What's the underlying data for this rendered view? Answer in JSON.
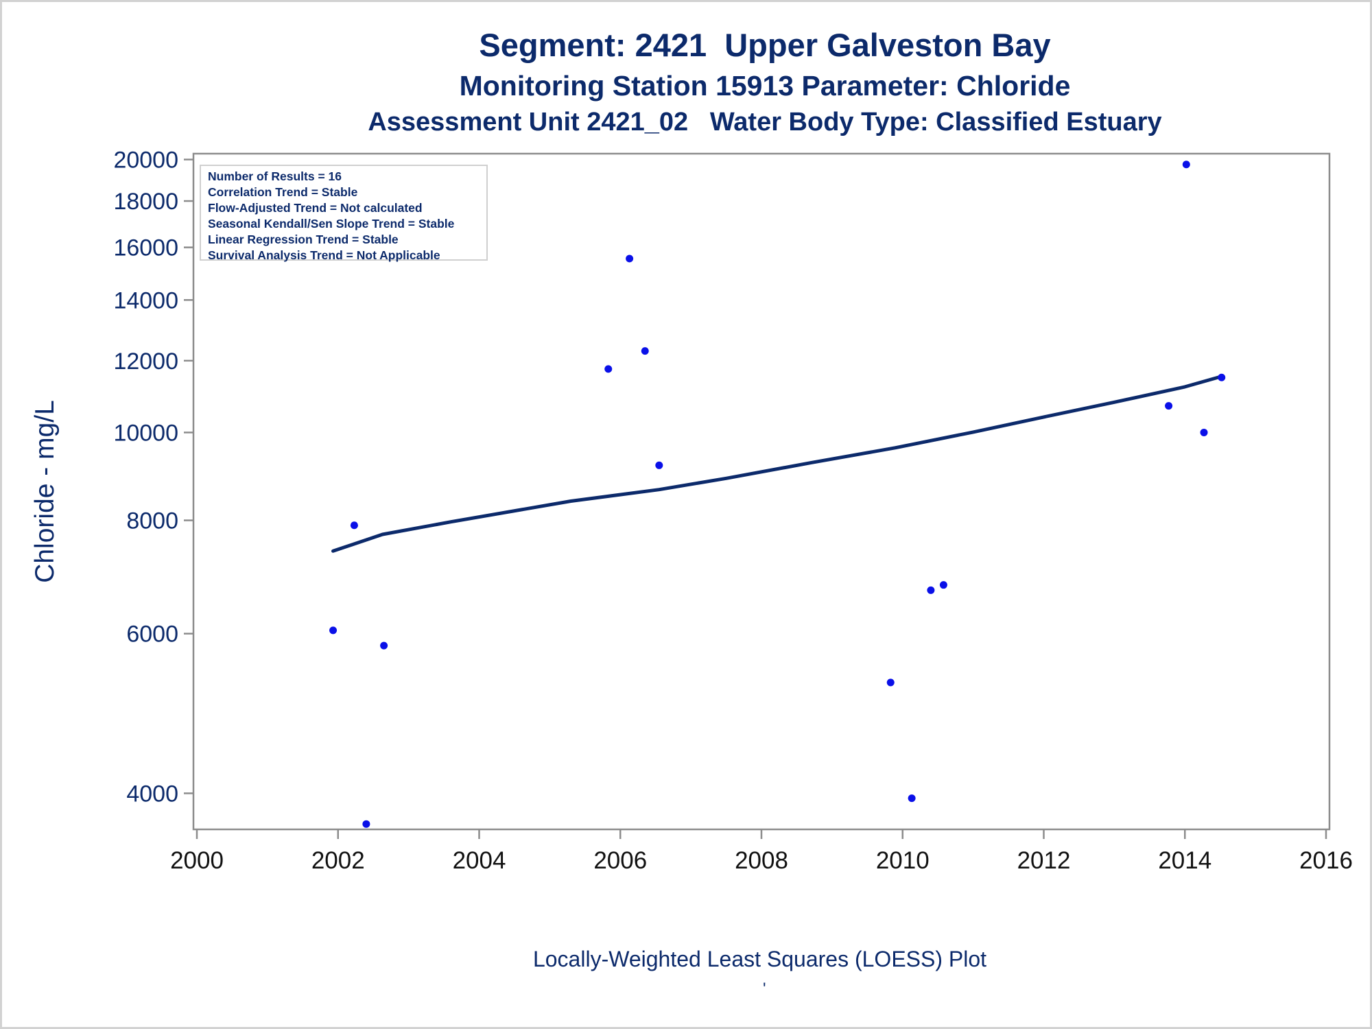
{
  "titles": {
    "line1": "Segment: 2421  Upper Galveston Bay",
    "line2": "Monitoring Station 15913 Parameter: Chloride",
    "line3": "Assessment Unit 2421_02   Water Body Type: Classified Estuary"
  },
  "stats_box": {
    "lines": [
      "Number of Results = 16",
      "Correlation Trend = Stable",
      "Flow-Adjusted Trend = Not calculated",
      "Seasonal Kendall/Sen Slope Trend = Stable",
      "Linear Regression Trend = Stable",
      "Survival Analysis Trend = Not Applicable"
    ]
  },
  "footnote": "Locally-Weighted Least Squares (LOESS) Plot",
  "footnote_mark": "'",
  "colors": {
    "text": "#0c2a6b",
    "points": "#0a10e8",
    "line": "#0c2a6b",
    "axis": "#8c8c8c"
  },
  "chart_data": {
    "type": "scatter",
    "title": "Segment: 2421  Upper Galveston Bay",
    "ylabel": "Chloride - mg/L",
    "xlabel": "",
    "y_scale": "log",
    "xlim": [
      2000,
      2016
    ],
    "ylim": [
      3650,
      20300
    ],
    "x_ticks": [
      "2000",
      "2002",
      "2004",
      "2006",
      "2008",
      "2010",
      "2012",
      "2014",
      "2016"
    ],
    "y_ticks": [
      "4000",
      "6000",
      "8000",
      "10000",
      "12000",
      "14000",
      "16000",
      "18000",
      "20000"
    ],
    "grid": false,
    "series": [
      {
        "type": "scatter",
        "x": [
          2001.93,
          2002.23,
          2002.4,
          2002.65,
          2005.83,
          2006.13,
          2006.35,
          2006.55,
          2009.83,
          2010.13,
          2010.4,
          2010.58,
          2013.77,
          2014.02,
          2014.27,
          2014.52
        ],
        "y": [
          6050,
          7900,
          3700,
          5820,
          11750,
          15550,
          12300,
          9200,
          5300,
          3950,
          6700,
          6790,
          10700,
          19750,
          10000,
          11500
        ]
      },
      {
        "type": "line",
        "x": [
          2001.93,
          2002.63,
          2003.6,
          2005.3,
          2006.55,
          2007.5,
          2008.7,
          2009.9,
          2011.0,
          2012.0,
          2013.0,
          2014.0,
          2014.52
        ],
        "y": [
          7400,
          7720,
          7970,
          8400,
          8650,
          8900,
          9260,
          9620,
          10010,
          10400,
          10800,
          11230,
          11530
        ]
      }
    ]
  }
}
